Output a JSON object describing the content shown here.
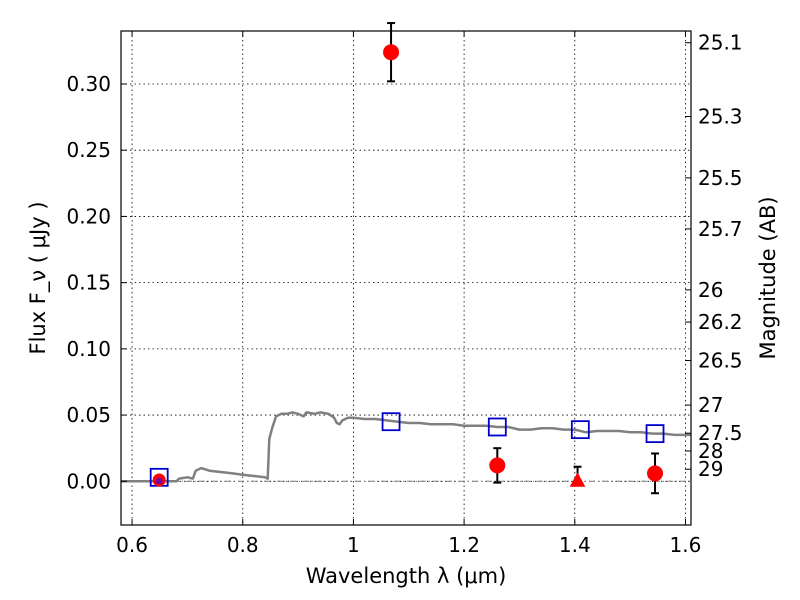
{
  "chart_data": {
    "type": "scatter",
    "xlabel": "Wavelength  λ (μm)",
    "ylabel": "Flux  F_ν  ( μJy )",
    "ylabel_right": "Magnitude (AB)",
    "xlim": [
      0.58,
      1.61
    ],
    "ylim": [
      -0.033,
      0.34
    ],
    "grid": true,
    "x_ticks": [
      {
        "value": 0.6,
        "label": "0.6"
      },
      {
        "value": 0.8,
        "label": "0.8"
      },
      {
        "value": 1.0,
        "label": "1"
      },
      {
        "value": 1.2,
        "label": "1.2"
      },
      {
        "value": 1.4,
        "label": "1.4"
      },
      {
        "value": 1.6,
        "label": "1.6"
      }
    ],
    "y_ticks": [
      {
        "value": 0.0,
        "label": "0.00"
      },
      {
        "value": 0.05,
        "label": "0.05"
      },
      {
        "value": 0.1,
        "label": "0.10"
      },
      {
        "value": 0.15,
        "label": "0.15"
      },
      {
        "value": 0.2,
        "label": "0.20"
      },
      {
        "value": 0.25,
        "label": "0.25"
      },
      {
        "value": 0.3,
        "label": "0.30"
      }
    ],
    "magnitude_ticks": [
      {
        "value": 25.1,
        "label": "25.1"
      },
      {
        "value": 25.3,
        "label": "25.3"
      },
      {
        "value": 25.5,
        "label": "25.5"
      },
      {
        "value": 25.7,
        "label": "25.7"
      },
      {
        "value": 26,
        "label": "26"
      },
      {
        "value": 26.2,
        "label": "26.2"
      },
      {
        "value": 26.5,
        "label": "26.5"
      },
      {
        "value": 27,
        "label": "27"
      },
      {
        "value": 27.5,
        "label": "27.5"
      },
      {
        "value": 28,
        "label": "28"
      },
      {
        "value": 29,
        "label": "29"
      }
    ],
    "series": [
      {
        "kind": "line",
        "color": "#808080",
        "points": [
          [
            0.58,
            0.0
          ],
          [
            0.68,
            0.0
          ],
          [
            0.685,
            0.002
          ],
          [
            0.7,
            0.003
          ],
          [
            0.71,
            0.002
          ],
          [
            0.715,
            0.008
          ],
          [
            0.725,
            0.01
          ],
          [
            0.74,
            0.008
          ],
          [
            0.76,
            0.007
          ],
          [
            0.78,
            0.006
          ],
          [
            0.8,
            0.005
          ],
          [
            0.82,
            0.004
          ],
          [
            0.84,
            0.003
          ],
          [
            0.845,
            0.002
          ],
          [
            0.848,
            0.032
          ],
          [
            0.853,
            0.04
          ],
          [
            0.86,
            0.049
          ],
          [
            0.87,
            0.051
          ],
          [
            0.88,
            0.051
          ],
          [
            0.89,
            0.052
          ],
          [
            0.9,
            0.051
          ],
          [
            0.91,
            0.049
          ],
          [
            0.915,
            0.052
          ],
          [
            0.93,
            0.051
          ],
          [
            0.94,
            0.052
          ],
          [
            0.955,
            0.051
          ],
          [
            0.965,
            0.048
          ],
          [
            0.97,
            0.044
          ],
          [
            0.975,
            0.043
          ],
          [
            0.98,
            0.046
          ],
          [
            0.99,
            0.048
          ],
          [
            1.0,
            0.048
          ],
          [
            1.02,
            0.047
          ],
          [
            1.04,
            0.047
          ],
          [
            1.06,
            0.046
          ],
          [
            1.08,
            0.045
          ],
          [
            1.1,
            0.044
          ],
          [
            1.12,
            0.044
          ],
          [
            1.14,
            0.043
          ],
          [
            1.16,
            0.043
          ],
          [
            1.18,
            0.043
          ],
          [
            1.2,
            0.042
          ],
          [
            1.22,
            0.042
          ],
          [
            1.24,
            0.042
          ],
          [
            1.26,
            0.041
          ],
          [
            1.28,
            0.041
          ],
          [
            1.3,
            0.039
          ],
          [
            1.32,
            0.039
          ],
          [
            1.34,
            0.04
          ],
          [
            1.36,
            0.04
          ],
          [
            1.38,
            0.039
          ],
          [
            1.4,
            0.039
          ],
          [
            1.42,
            0.037
          ],
          [
            1.44,
            0.038
          ],
          [
            1.46,
            0.038
          ],
          [
            1.48,
            0.038
          ],
          [
            1.5,
            0.037
          ],
          [
            1.52,
            0.037
          ],
          [
            1.54,
            0.036
          ],
          [
            1.56,
            0.036
          ],
          [
            1.58,
            0.035
          ],
          [
            1.61,
            0.035
          ]
        ]
      },
      {
        "kind": "open-square",
        "color": "#0000cc",
        "points": [
          [
            0.649,
            0.003
          ],
          [
            1.068,
            0.045
          ],
          [
            1.26,
            0.041
          ],
          [
            1.41,
            0.039
          ],
          [
            1.545,
            0.036
          ]
        ]
      },
      {
        "kind": "circle",
        "color": "#ff0000",
        "points": [
          {
            "x": 0.649,
            "y": 0.001,
            "err": 0.002
          },
          {
            "x": 1.068,
            "y": 0.324,
            "err": 0.022
          },
          {
            "x": 1.26,
            "y": 0.012,
            "err": 0.013
          },
          {
            "x": 1.545,
            "y": 0.006,
            "err": 0.015
          }
        ]
      },
      {
        "kind": "triangle",
        "color": "#ff0000",
        "points": [
          {
            "x": 1.405,
            "y": 0.0,
            "err_low": 0.0,
            "err_high": 0.011
          }
        ]
      }
    ],
    "dash_zero_line": {
      "y": 0.0,
      "color": "#808080"
    }
  }
}
